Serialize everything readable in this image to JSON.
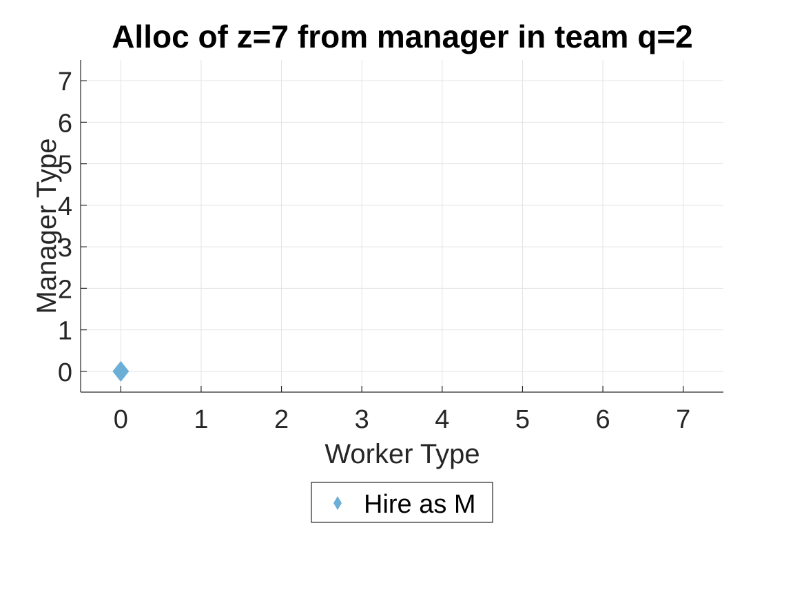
{
  "chart_data": {
    "type": "scatter",
    "title": "Alloc of z=7 from manager in team q=2",
    "xlabel": "Worker Type",
    "ylabel": "Manager Type",
    "xlim": [
      -0.5,
      7.5
    ],
    "ylim": [
      -0.5,
      7.5
    ],
    "xticks": [
      "0",
      "1",
      "2",
      "3",
      "4",
      "5",
      "6",
      "7"
    ],
    "yticks": [
      "0",
      "1",
      "2",
      "3",
      "4",
      "5",
      "6",
      "7"
    ],
    "grid": true,
    "legend_position": "bottom",
    "series": [
      {
        "name": "Hire as M",
        "marker": "diamond",
        "color": "#6baed6",
        "points": [
          {
            "x": 0,
            "y": 0
          }
        ]
      }
    ]
  }
}
